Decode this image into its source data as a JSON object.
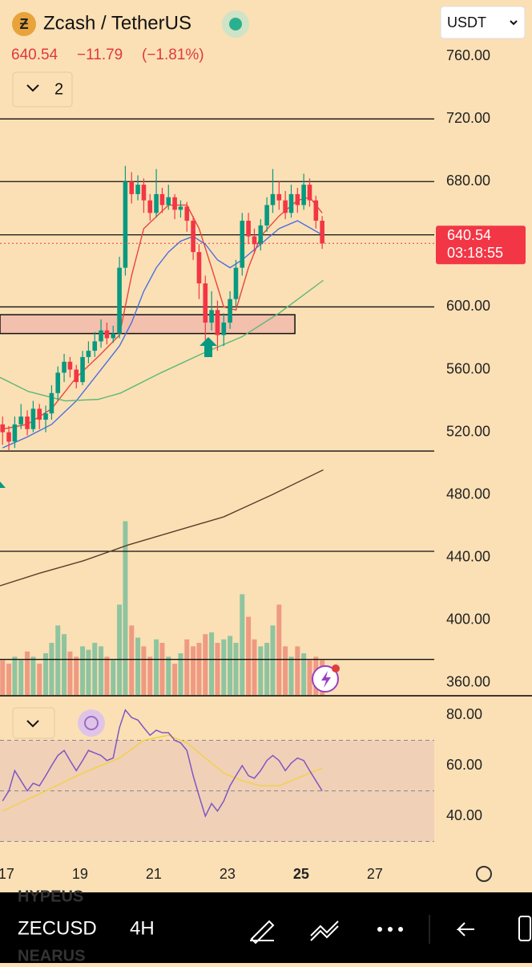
{
  "header": {
    "symbol_title": "Zcash / TetherUS",
    "price": "640.54",
    "change": "−11.79",
    "change_pct": "(−1.81%)",
    "currency": "USDT",
    "indicator_count": "2"
  },
  "chart_data": [
    {
      "type": "candlestick",
      "x": [
        16.9,
        17.07,
        17.23,
        17.4,
        17.57,
        17.73,
        17.9,
        18.07,
        18.23,
        18.4,
        18.57,
        18.73,
        18.9,
        19.07,
        19.23,
        19.4,
        19.57,
        19.73,
        19.9,
        20.07,
        20.23,
        20.4,
        20.57,
        20.73,
        20.9,
        21.07,
        21.23,
        21.4,
        21.57,
        21.73,
        21.9,
        22.07,
        22.23,
        22.4,
        22.57,
        22.73,
        22.9,
        23.07,
        23.23,
        23.4,
        23.57,
        23.73,
        23.9,
        24.07,
        24.23,
        24.4,
        24.57,
        24.73,
        24.9,
        25.07,
        25.23,
        25.4,
        25.57
      ],
      "open": [
        525,
        520,
        514,
        525,
        530,
        522,
        535,
        528,
        532,
        545,
        558,
        565,
        560,
        552,
        568,
        572,
        578,
        585,
        580,
        583,
        625,
        680,
        672,
        678,
        668,
        660,
        672,
        665,
        670,
        662,
        664,
        655,
        635,
        615,
        590,
        598,
        582,
        590,
        605,
        625,
        655,
        645,
        640,
        652,
        665,
        672,
        668,
        660,
        672,
        665,
        678,
        668,
        655
      ],
      "high": [
        530,
        524,
        530,
        538,
        534,
        540,
        538,
        537,
        550,
        562,
        570,
        568,
        563,
        572,
        578,
        584,
        592,
        590,
        588,
        632,
        690,
        686,
        684,
        682,
        672,
        688,
        676,
        678,
        672,
        668,
        667,
        658,
        640,
        620,
        610,
        604,
        596,
        610,
        630,
        660,
        660,
        650,
        656,
        670,
        688,
        680,
        674,
        678,
        676,
        685,
        682,
        671,
        658
      ],
      "low": [
        512,
        508,
        510,
        522,
        518,
        520,
        522,
        520,
        528,
        540,
        552,
        555,
        548,
        550,
        564,
        568,
        574,
        576,
        577,
        580,
        620,
        666,
        668,
        660,
        655,
        657,
        660,
        662,
        656,
        657,
        648,
        630,
        605,
        578,
        585,
        572,
        575,
        586,
        600,
        620,
        640,
        634,
        636,
        648,
        660,
        662,
        656,
        657,
        660,
        662,
        664,
        650,
        637
      ],
      "close": [
        520,
        514,
        525,
        530,
        522,
        535,
        528,
        532,
        545,
        558,
        565,
        560,
        552,
        568,
        572,
        578,
        585,
        580,
        583,
        625,
        680,
        672,
        678,
        668,
        660,
        672,
        665,
        670,
        662,
        664,
        655,
        635,
        615,
        590,
        598,
        582,
        590,
        605,
        625,
        655,
        645,
        640,
        652,
        665,
        672,
        668,
        660,
        672,
        665,
        678,
        668,
        655,
        640.54
      ],
      "up_color": "#089981",
      "down_color": "#f23645",
      "xlim": [
        16.83,
        28.61
      ],
      "xticks": [
        17,
        19,
        21,
        23,
        25,
        27
      ],
      "ylim": [
        352.3,
        795.9
      ],
      "yticks": [
        {
          "value": 760,
          "label": "760.00"
        },
        {
          "value": 720,
          "label": "720.00"
        },
        {
          "value": 680,
          "label": "680.00"
        },
        {
          "value": 600,
          "label": "600.00"
        },
        {
          "value": 560,
          "label": "560.00"
        },
        {
          "value": 520,
          "label": "520.00"
        },
        {
          "value": 480,
          "label": "480.00"
        },
        {
          "value": 440,
          "label": "440.00"
        },
        {
          "value": 400,
          "label": "400.00"
        },
        {
          "value": 360,
          "label": "360.00"
        }
      ],
      "series": [
        {
          "color": "#e8453c",
          "x": [
            16.9,
            17.57,
            18.23,
            18.9,
            19.57,
            20.07,
            20.4,
            20.73,
            21.4,
            21.9,
            22.23,
            22.57,
            22.9,
            23.23,
            23.57,
            23.9,
            24.4,
            24.9,
            25.23,
            25.57
          ],
          "values": [
            522,
            525,
            535,
            555,
            570,
            582,
            620,
            650,
            665,
            665,
            650,
            625,
            600,
            598,
            625,
            645,
            658,
            668,
            670,
            660
          ]
        },
        {
          "color": "#4a6fe0",
          "x": [
            16.9,
            17.57,
            18.23,
            18.9,
            19.57,
            20.07,
            20.4,
            20.73,
            21.07,
            21.4,
            21.73,
            22.07,
            22.4,
            22.73,
            23.07,
            23.4,
            23.9,
            24.4,
            24.9,
            25.57
          ],
          "values": [
            510,
            517,
            525,
            540,
            560,
            575,
            590,
            610,
            625,
            635,
            642,
            645,
            640,
            630,
            625,
            630,
            640,
            650,
            655,
            646
          ]
        },
        {
          "color": "#5cb878",
          "x": [
            16.83,
            17.6,
            18.6,
            19.5,
            20.1,
            21.2,
            22.3,
            23.4,
            24.4,
            25.6
          ],
          "values": [
            555,
            546,
            540,
            541,
            545,
            558,
            570,
            581,
            596,
            617
          ]
        },
        {
          "color": "#5a3e2b",
          "x": [
            16.83,
            17.9,
            19.1,
            20.3,
            21.6,
            22.9,
            24.2,
            25.6
          ],
          "values": [
            422,
            430,
            438,
            448,
            457,
            466,
            480,
            496
          ]
        }
      ],
      "levels": [
        720,
        680,
        646,
        600,
        508,
        444,
        375
      ],
      "zone": [
        583,
        595
      ],
      "zone_end": 24.83,
      "last_price": 640.54,
      "countdown": "03:18:55",
      "volume": [
        20,
        18,
        22,
        20,
        25,
        22,
        18,
        24,
        30,
        40,
        35,
        25,
        22,
        28,
        26,
        30,
        28,
        22,
        20,
        52,
        100,
        40,
        33,
        28,
        22,
        32,
        30,
        22,
        18,
        24,
        32,
        28,
        30,
        35,
        36,
        30,
        32,
        34,
        30,
        58,
        45,
        32,
        28,
        30,
        40,
        52,
        28,
        22,
        28,
        24,
        20,
        22,
        20
      ],
      "vlim": [
        0,
        400
      ],
      "volume_up_color": "#8fc4a0",
      "volume_down_color": "#ef9a82"
    },
    {
      "type": "line",
      "rsi": [
        46,
        50,
        58,
        54,
        50,
        53,
        52,
        56,
        60,
        64,
        66,
        62,
        58,
        62,
        66,
        65,
        64,
        62,
        63,
        75,
        82,
        79,
        78,
        75,
        72,
        74,
        73,
        73,
        70,
        69,
        66,
        56,
        48,
        40,
        45,
        42,
        46,
        52,
        56,
        60,
        56,
        55,
        58,
        62,
        64,
        62,
        58,
        61,
        63,
        62,
        58,
        54,
        50
      ],
      "rsi_color": "#7e57c2",
      "ma_x": [
        16.9,
        18.07,
        19.07,
        20.07,
        20.73,
        21.4,
        21.9,
        22.4,
        22.9,
        23.4,
        23.9,
        24.4,
        24.9,
        25.57
      ],
      "ma": [
        42,
        50,
        57,
        63,
        70,
        72,
        69,
        63,
        57,
        54,
        52,
        52,
        55,
        59
      ],
      "ma_color": "#f0d24a",
      "band": [
        30,
        70
      ],
      "midline": 50,
      "ylim": [
        25.1,
        87.3
      ],
      "yticks": [
        {
          "value": 80,
          "label": "80.00"
        },
        {
          "value": 60,
          "label": "60.00"
        },
        {
          "value": 40,
          "label": "40.00"
        }
      ]
    }
  ],
  "toolbar": {
    "symbol": "ZECUSD",
    "interval": "4H",
    "watchlist": [
      "HYPEUS",
      "NEARUS"
    ]
  }
}
